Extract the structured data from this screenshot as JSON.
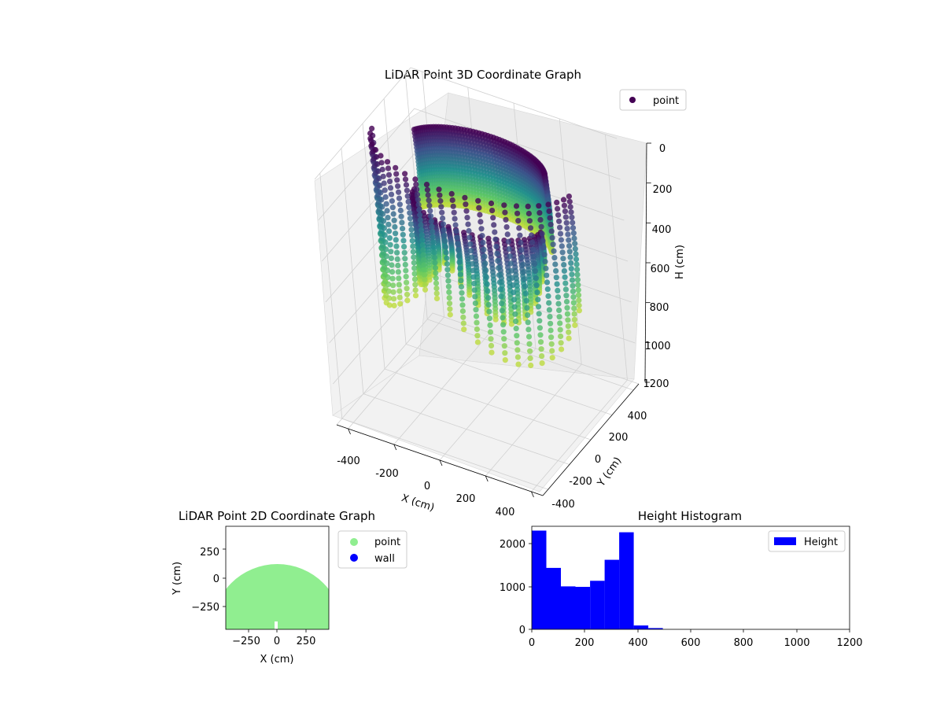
{
  "colors": {
    "viridis_dark": "#440154",
    "viridis_mid": "#21918c",
    "viridis_light": "#fde725",
    "scatter2d_point": "#90ee90",
    "scatter2d_wall": "#0000ff",
    "hist_bar": "#0000ff",
    "pane": "#f2f2f2"
  },
  "chart_data": [
    {
      "type": "scatter3d",
      "title": "LiDAR Point 3D Coordinate Graph",
      "xlabel": "X (cm)",
      "ylabel": "Y (cm)",
      "zlabel": "H (cm)",
      "xlim": [
        -450,
        450
      ],
      "ylim": [
        -450,
        450
      ],
      "zlim": [
        0,
        1200
      ],
      "z_inverted": true,
      "x_ticks": [
        "-400",
        "-200",
        "0",
        "200",
        "400"
      ],
      "y_ticks": [
        "-400",
        "-200",
        "0",
        "200",
        "400"
      ],
      "z_ticks": [
        "0",
        "200",
        "400",
        "600",
        "800",
        "1000",
        "1200"
      ],
      "legend": {
        "position": "top-right",
        "entries": [
          "point"
        ]
      },
      "colormap": "viridis",
      "grid": true,
      "point_rings": [
        {
          "r": 470,
          "a0": 5,
          "a1": 175,
          "n": 24,
          "h0": 40,
          "h1": 560,
          "hTailMax": 820
        },
        {
          "r": 300,
          "a0": 0,
          "a1": 180,
          "n": 26,
          "h0": 290,
          "h1": 470,
          "hTailMax": 700
        },
        {
          "r": 330,
          "a0": 200,
          "a1": 340,
          "n": 60,
          "h0": 40,
          "h1": 420,
          "hTailMax": 420
        }
      ]
    },
    {
      "type": "scatter",
      "title": "LiDAR Point 2D Coordinate Graph",
      "xlabel": "X (cm)",
      "ylabel": "Y (cm)",
      "xlim": [
        -450,
        450
      ],
      "ylim": [
        -450,
        450
      ],
      "x_ticks": [
        "−250",
        "0",
        "250"
      ],
      "y_ticks": [
        "−250",
        "0",
        "250"
      ],
      "legend": {
        "position": "outside-right",
        "entries": [
          "point",
          "wall"
        ]
      },
      "series": [
        {
          "name": "point",
          "shape": "half-disc",
          "center": [
            0,
            -450
          ],
          "radius": 570
        },
        {
          "name": "wall",
          "values": []
        }
      ]
    },
    {
      "type": "bar",
      "title": "Height Histogram",
      "legend": {
        "position": "top-right",
        "entries": [
          "Height"
        ]
      },
      "xlim": [
        0,
        1200
      ],
      "ylim": [
        0,
        2400
      ],
      "x_ticks": [
        "0",
        "200",
        "400",
        "600",
        "800",
        "1000",
        "1200"
      ],
      "y_ticks": [
        "0",
        "1000",
        "2000"
      ],
      "bin_width": 55,
      "bins_start": [
        0,
        55,
        110,
        165,
        220,
        275,
        330,
        385,
        440,
        495,
        550,
        605,
        660,
        715,
        770,
        825,
        880,
        935,
        990,
        1045,
        1100,
        1155
      ],
      "values": [
        2300,
        1430,
        1000,
        990,
        1130,
        1620,
        2260,
        90,
        30,
        0,
        0,
        0,
        0,
        0,
        0,
        0,
        0,
        0,
        0,
        0,
        0,
        0
      ]
    }
  ]
}
